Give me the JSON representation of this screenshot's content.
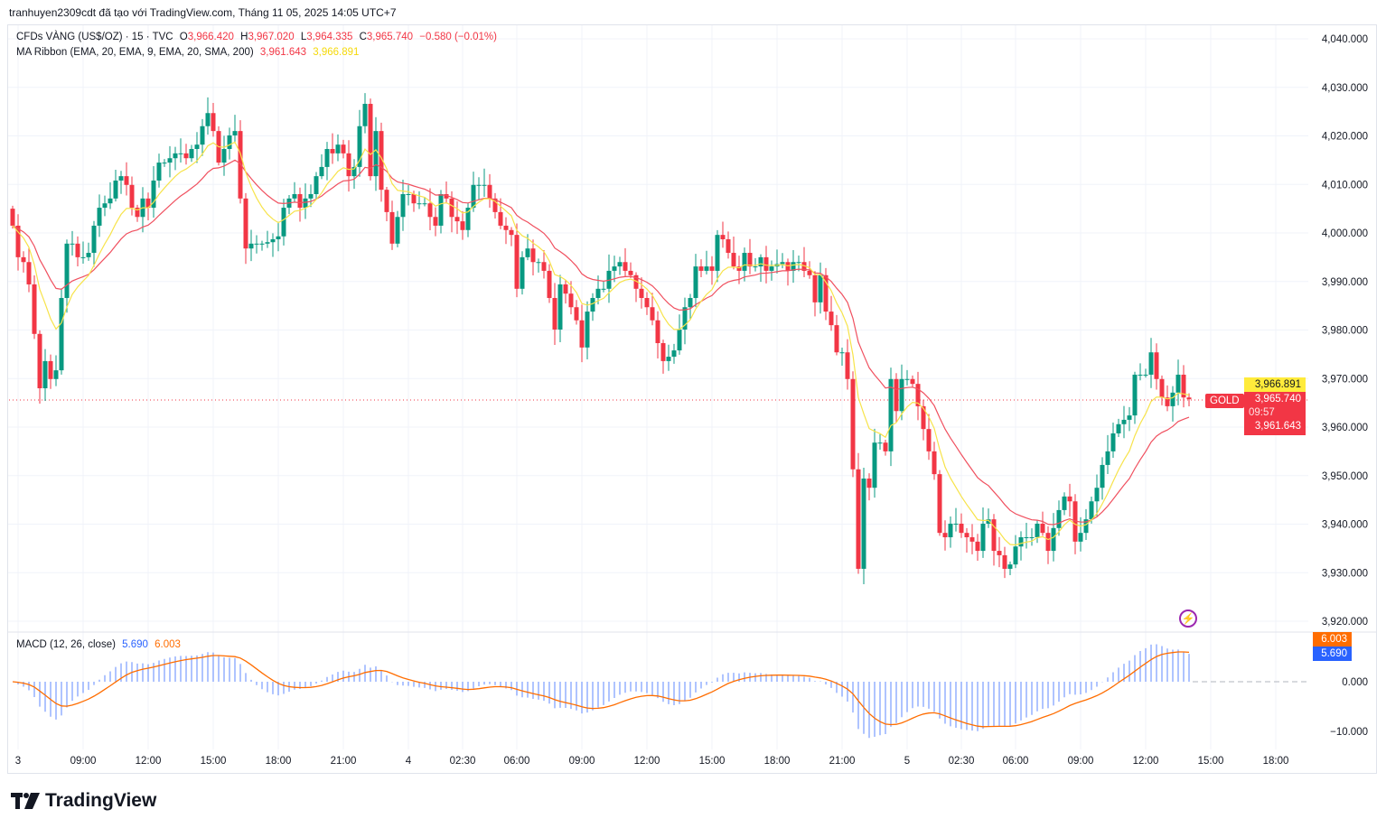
{
  "header": {
    "attribution": "tranhuyen2309cdt đã tạo với TradingView.com, Tháng 11 05, 2025 14:05 UTC+7"
  },
  "symbol_legend": {
    "name": "CFDs VÀNG (US$/OZ) · 15 · TVC",
    "o_label": "O",
    "o": "3,966.420",
    "h_label": "H",
    "h": "3,967.020",
    "l_label": "L",
    "l": "3,964.335",
    "c_label": "C",
    "c": "3,965.740",
    "change": "−0.580 (−0.01%)"
  },
  "ma_legend": {
    "name": "MA Ribbon (EMA, 20, EMA, 9, EMA, 20, SMA, 200)",
    "v1": "3,961.643",
    "v2": "3,966.891"
  },
  "macd_legend": {
    "name": "MACD (12, 26, close)",
    "macd": "5.690",
    "signal": "6.003"
  },
  "price_tags": {
    "symbol": "GOLD",
    "ema9": "3,966.891",
    "last": "3,965.740",
    "countdown": "09:57",
    "ema20": "3,961.643",
    "signal": "6.003",
    "macd": "5.690"
  },
  "colors": {
    "up": "#089981",
    "down": "#f23645",
    "ema9": "#f7e34a",
    "ema20": "#f0505f",
    "macd": "#2962ff",
    "signal": "#ff6d00"
  },
  "logo": {
    "text": "TradingView"
  },
  "chart_data": {
    "type": "candlestick",
    "title": "CFDs VÀNG (US$/OZ) · 15 · TVC",
    "interval_minutes": 15,
    "first_open": 4005.0,
    "close": [
      4001.5,
      3995.0,
      3994.0,
      3989.4,
      3979.2,
      3968.0,
      3973.6,
      3969.9,
      3971.7,
      3986.6,
      3997.8,
      3997.8,
      3995.0,
      3995.0,
      3995.9,
      4001.5,
      4005.2,
      4006.1,
      4007.1,
      4010.8,
      4011.7,
      4009.9,
      4005.2,
      4003.3,
      4007.1,
      4005.2,
      4010.8,
      4014.5,
      4014.5,
      4015.4,
      4016.4,
      4016.4,
      4015.4,
      4017.3,
      4018.2,
      4022.0,
      4024.7,
      4021.0,
      4014.5,
      4017.3,
      4020.1,
      4021.0,
      4007.1,
      3996.8,
      3997.8,
      3997.8,
      3997.8,
      3998.1,
      3998.7,
      3999.3,
      4005.2,
      4007.1,
      4008.0,
      4005.2,
      4007.1,
      4008.0,
      4011.7,
      4013.6,
      4017.3,
      4016.4,
      4018.2,
      4016.4,
      4011.7,
      4013.6,
      4022.0,
      4026.6,
      4011.7,
      4021.0,
      4008.9,
      4004.3,
      3997.8,
      4003.3,
      4008.0,
      4008.0,
      4006.1,
      4006.1,
      4006.1,
      4003.3,
      4001.5,
      4008.0,
      4007.1,
      4003.3,
      4002.4,
      4000.6,
      4005.2,
      4009.9,
      4009.9,
      4009.9,
      4007.1,
      4004.3,
      4001.5,
      4000.6,
      3999.6,
      3988.5,
      3995.0,
      3996.8,
      3994.0,
      3994.0,
      3992.2,
      3986.6,
      3980.1,
      3989.4,
      3987.5,
      3984.7,
      3982.0,
      3976.4,
      3983.8,
      3986.6,
      3988.5,
      3988.5,
      3992.2,
      3993.1,
      3994.0,
      3992.2,
      3991.3,
      3988.5,
      3986.6,
      3984.7,
      3982.0,
      3977.3,
      3973.6,
      3974.5,
      3975.8,
      3980.1,
      3984.7,
      3986.6,
      3993.1,
      3992.2,
      3993.1,
      3992.2,
      3999.6,
      3998.7,
      3995.9,
      3993.1,
      3992.2,
      3995.9,
      3993.1,
      3993.1,
      3995.0,
      3992.2,
      3993.1,
      3993.6,
      3994.0,
      3992.2,
      3994.0,
      3994.0,
      3992.2,
      3991.3,
      3985.7,
      3991.3,
      3983.8,
      3981.0,
      3975.4,
      3975.4,
      3969.9,
      3951.3,
      3930.8,
      3949.4,
      3947.5,
      3956.8,
      3956.8,
      3955.0,
      3969.9,
      3963.3,
      3969.9,
      3969.9,
      3968.9,
      3964.3,
      3959.6,
      3955.0,
      3950.3,
      3938.2,
      3937.3,
      3940.1,
      3940.1,
      3938.2,
      3937.3,
      3936.4,
      3934.5,
      3940.1,
      3941.0,
      3934.5,
      3933.6,
      3930.8,
      3931.7,
      3935.4,
      3937.3,
      3937.3,
      3937.3,
      3940.1,
      3938.2,
      3934.5,
      3939.2,
      3942.9,
      3945.7,
      3944.7,
      3936.4,
      3938.2,
      3941.0,
      3944.7,
      3947.5,
      3952.2,
      3955.0,
      3958.7,
      3960.6,
      3961.5,
      3962.4,
      3970.8,
      3970.8,
      3970.8,
      3975.4,
      3969.9,
      3966.1,
      3964.3,
      3967.1,
      3970.8,
      3966.1,
      3965.74
    ],
    "ylim": [
      3916,
      4044
    ],
    "y_ticks": [
      "4,040.000",
      "4,030.000",
      "4,020.000",
      "4,010.000",
      "4,000.000",
      "3,990.000",
      "3,980.000",
      "3,970.000",
      "3,960.000",
      "3,950.000",
      "3,940.000",
      "3,930.000",
      "3,920.000"
    ],
    "y_tick_values": [
      4040,
      4030,
      4020,
      4010,
      4000,
      3990,
      3980,
      3970,
      3960,
      3950,
      3940,
      3930,
      3920
    ],
    "x_ticks": [
      "3",
      "09:00",
      "12:00",
      "15:00",
      "18:00",
      "21:00",
      "4",
      "02:30",
      "06:00",
      "09:00",
      "12:00",
      "15:00",
      "18:00",
      "21:00",
      "5",
      "02:30",
      "06:00",
      "09:00",
      "12:00",
      "15:00",
      "18:00"
    ],
    "x_tick_bar_index": [
      1,
      13,
      25,
      37,
      49,
      61,
      73,
      83,
      93,
      105,
      117,
      129,
      141,
      153,
      165,
      175,
      185,
      197,
      209,
      221,
      233
    ],
    "series": [
      {
        "name": "EMA 9"
      },
      {
        "name": "EMA 20"
      }
    ],
    "macd": {
      "ticks": [
        "0.000",
        "−10.000"
      ],
      "tick_values": [
        0,
        -10
      ]
    }
  }
}
